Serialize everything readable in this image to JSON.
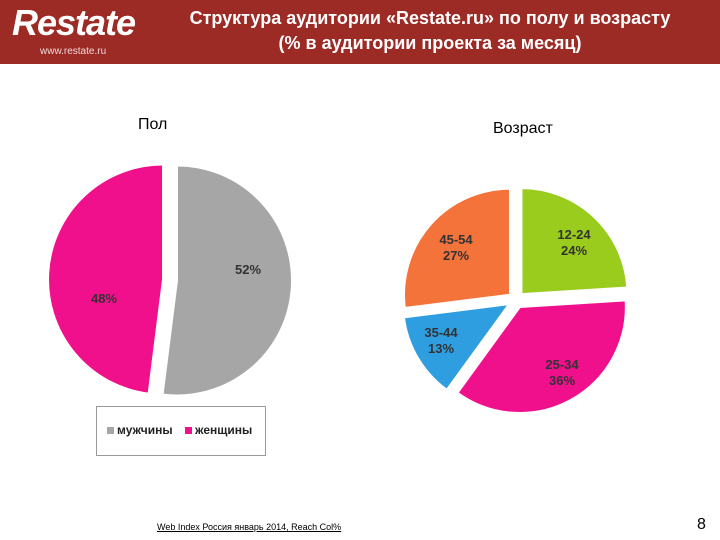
{
  "header": {
    "logo_text": "Restate",
    "logo_url": "www.restate.ru",
    "title_line1": "Структура аудитории «Restate.ru» по полу и возрасту",
    "title_line2": "(% в аудитории проекта за месяц)",
    "background": "#9c2b26"
  },
  "chart_data": [
    {
      "type": "pie",
      "title": "Пол",
      "categories": [
        "мужчины",
        "женщины"
      ],
      "values": [
        52,
        48
      ],
      "data_labels": [
        "52%",
        "48%"
      ],
      "colors": [
        "#a6a6a6",
        "#f0108c"
      ],
      "legend": {
        "position": "bottom",
        "entries": [
          "мужчины",
          "женщины"
        ]
      }
    },
    {
      "type": "pie",
      "title": "Возраст",
      "categories": [
        "12-24",
        "25-34",
        "35-44",
        "45-54"
      ],
      "values": [
        24,
        36,
        13,
        27
      ],
      "data_labels": [
        "24%",
        "36%",
        "13%",
        "27%"
      ],
      "colors": [
        "#99cc1c",
        "#f0108c",
        "#2f9ee0",
        "#f4733a"
      ]
    }
  ],
  "footer": {
    "source": "Web Index Россия январь 2014, Reach Col%",
    "page_number": "8"
  }
}
